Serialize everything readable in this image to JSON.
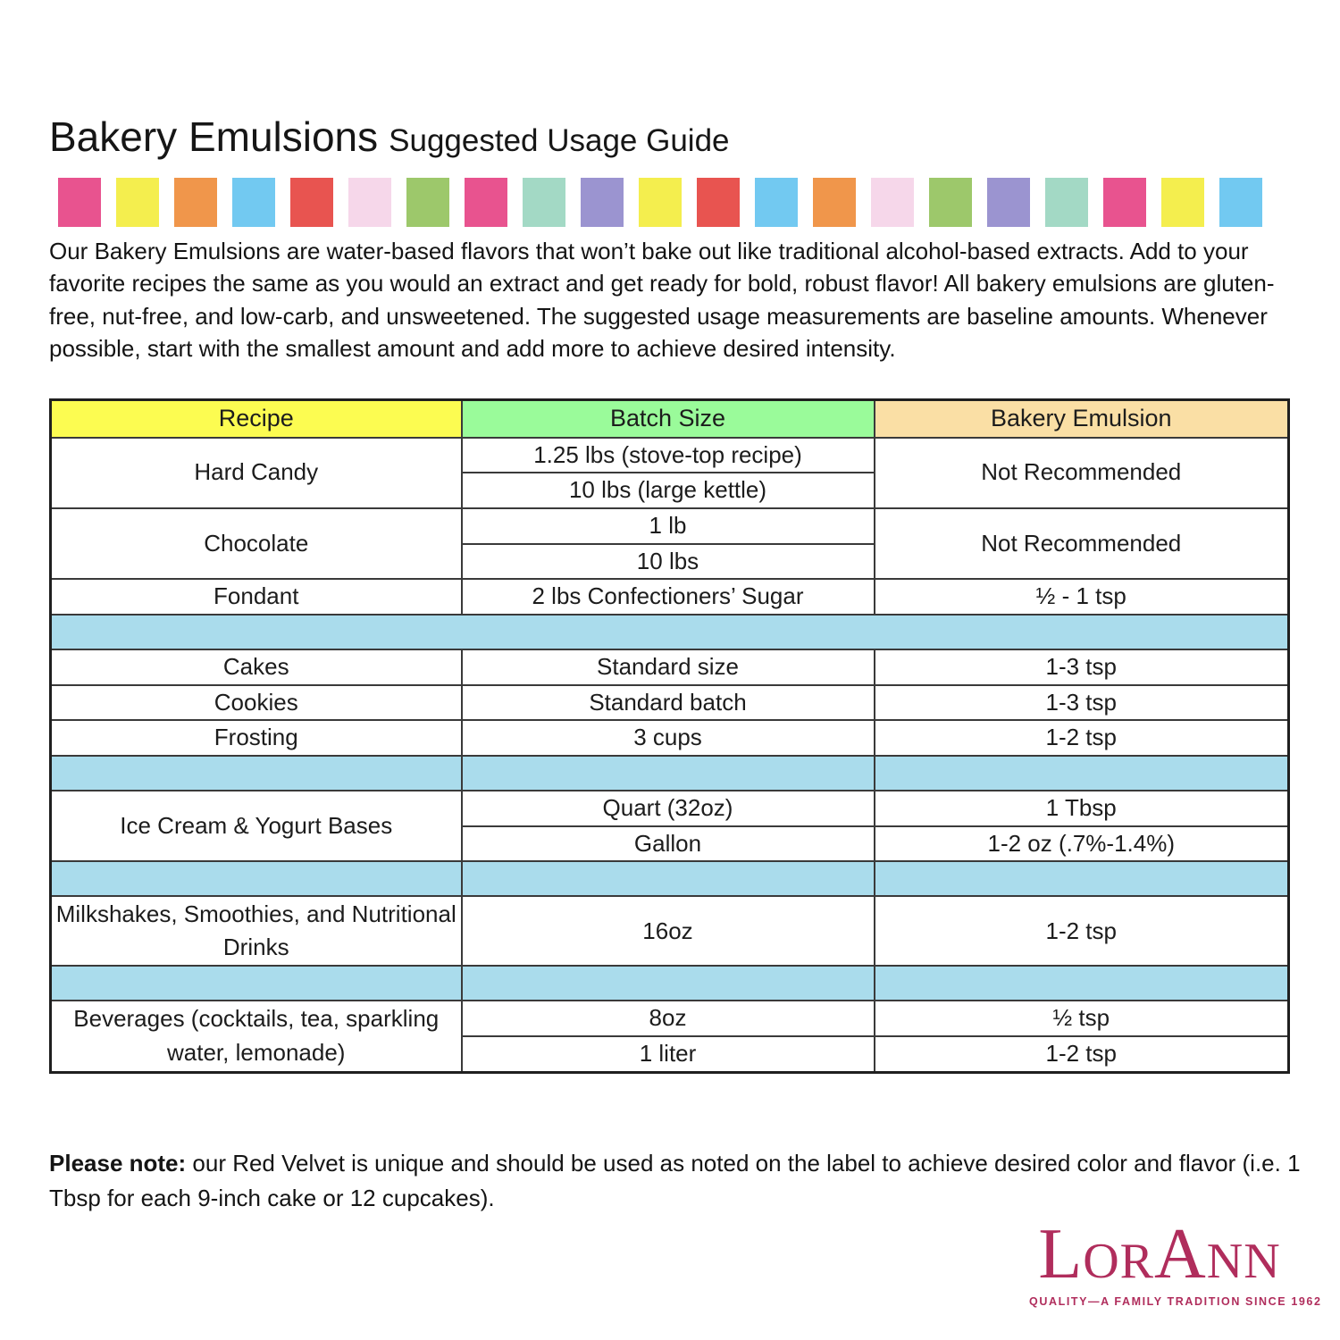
{
  "title": {
    "main": "Bakery Emulsions",
    "sub": "Suggested Usage Guide"
  },
  "banner": {
    "palette": {
      "pink": "#E8538F",
      "yellow": "#F4EE4E",
      "orange": "#F0964B",
      "blue": "#72C9F1",
      "red": "#E85450",
      "lightpink": "#F6D7EA",
      "green": "#9DC86B",
      "teal": "#A3D9C5",
      "purple": "#9B94D0"
    },
    "sequence": [
      "pink",
      "yellow",
      "orange",
      "blue",
      "red",
      "lightpink",
      "green",
      "pink",
      "teal",
      "purple",
      "yellow",
      "red",
      "blue",
      "orange",
      "lightpink",
      "green",
      "purple",
      "teal",
      "pink",
      "yellow",
      "blue"
    ]
  },
  "intro": "Our Bakery Emulsions are water-based flavors that won’t bake out like traditional alcohol-based extracts. Add to your favorite recipes the same as you would an extract and get ready for bold, robust flavor! All bakery emulsions are gluten-free, nut-free, and low-carb, and unsweetened. The suggested usage measurements are baseline amounts. Whenever possible, start with the smallest amount and add more to achieve desired intensity.",
  "table": {
    "headers": [
      {
        "label": "Recipe",
        "bg": "#FCFC51"
      },
      {
        "label": "Batch Size",
        "bg": "#9AFB9A"
      },
      {
        "label": "Bakery Emulsion",
        "bg": "#FADFA5"
      }
    ],
    "separator_color": "#AADCEC",
    "rows": [
      {
        "type": "data",
        "cells": [
          {
            "col": "recipe",
            "text": "Hard Candy",
            "rowspan": 2
          },
          {
            "col": "batch",
            "text": "1.25 lbs (stove-top recipe)"
          },
          {
            "col": "emulsion",
            "text": "Not Recommended",
            "rowspan": 2
          }
        ]
      },
      {
        "type": "data",
        "cells": [
          {
            "col": "batch",
            "text": "10 lbs (large kettle)"
          }
        ]
      },
      {
        "type": "data",
        "cells": [
          {
            "col": "recipe",
            "text": "Chocolate",
            "rowspan": 2
          },
          {
            "col": "batch",
            "text": "1 lb"
          },
          {
            "col": "emulsion",
            "text": "Not Recommended",
            "rowspan": 2
          }
        ]
      },
      {
        "type": "data",
        "cells": [
          {
            "col": "batch",
            "text": "10 lbs"
          }
        ]
      },
      {
        "type": "data",
        "cells": [
          {
            "col": "recipe",
            "text": "Fondant"
          },
          {
            "col": "batch",
            "text": "2 lbs Confectioners’ Sugar"
          },
          {
            "col": "emulsion",
            "text": "½ - 1 tsp"
          }
        ]
      },
      {
        "type": "separator",
        "merged": true
      },
      {
        "type": "data",
        "cells": [
          {
            "col": "recipe",
            "text": "Cakes"
          },
          {
            "col": "batch",
            "text": "Standard size"
          },
          {
            "col": "emulsion",
            "text": "1-3 tsp"
          }
        ]
      },
      {
        "type": "data",
        "cells": [
          {
            "col": "recipe",
            "text": "Cookies"
          },
          {
            "col": "batch",
            "text": "Standard batch"
          },
          {
            "col": "emulsion",
            "text": "1-3 tsp"
          }
        ]
      },
      {
        "type": "data",
        "cells": [
          {
            "col": "recipe",
            "text": "Frosting"
          },
          {
            "col": "batch",
            "text": "3 cups"
          },
          {
            "col": "emulsion",
            "text": "1-2 tsp"
          }
        ]
      },
      {
        "type": "separator",
        "merged": false
      },
      {
        "type": "data",
        "cells": [
          {
            "col": "recipe",
            "text": "Ice Cream & Yogurt Bases",
            "rowspan": 2
          },
          {
            "col": "batch",
            "text": "Quart (32oz)"
          },
          {
            "col": "emulsion",
            "text": "1 Tbsp"
          }
        ]
      },
      {
        "type": "data",
        "cells": [
          {
            "col": "batch",
            "text": "Gallon"
          },
          {
            "col": "emulsion",
            "text": "1-2 oz (.7%-1.4%)"
          }
        ]
      },
      {
        "type": "separator",
        "merged": false
      },
      {
        "type": "data",
        "tall": true,
        "cells": [
          {
            "col": "recipe",
            "text": "Milkshakes, Smoothies, and Nutritional Drinks"
          },
          {
            "col": "batch",
            "text": "16oz"
          },
          {
            "col": "emulsion",
            "text": "1-2 tsp"
          }
        ]
      },
      {
        "type": "separator",
        "merged": false
      },
      {
        "type": "data",
        "cells": [
          {
            "col": "recipe",
            "text": "Beverages (cocktails, tea, sparkling water, lemonade)",
            "rowspan": 2
          },
          {
            "col": "batch",
            "text": "8oz"
          },
          {
            "col": "emulsion",
            "text": "½ tsp"
          }
        ]
      },
      {
        "type": "data",
        "cells": [
          {
            "col": "batch",
            "text": "1 liter"
          },
          {
            "col": "emulsion",
            "text": "1-2 tsp"
          }
        ]
      }
    ]
  },
  "note": {
    "label": "Please note:",
    "text": " our Red Velvet is unique and should be used as noted on the label to achieve desired color and flavor (i.e. 1 Tbsp for each 9-inch cake or 12 cupcakes)."
  },
  "logo": {
    "name": "LorAnn",
    "tagline": "QUALITY—A FAMILY TRADITION SINCE 1962",
    "color": "#B02D5C"
  }
}
